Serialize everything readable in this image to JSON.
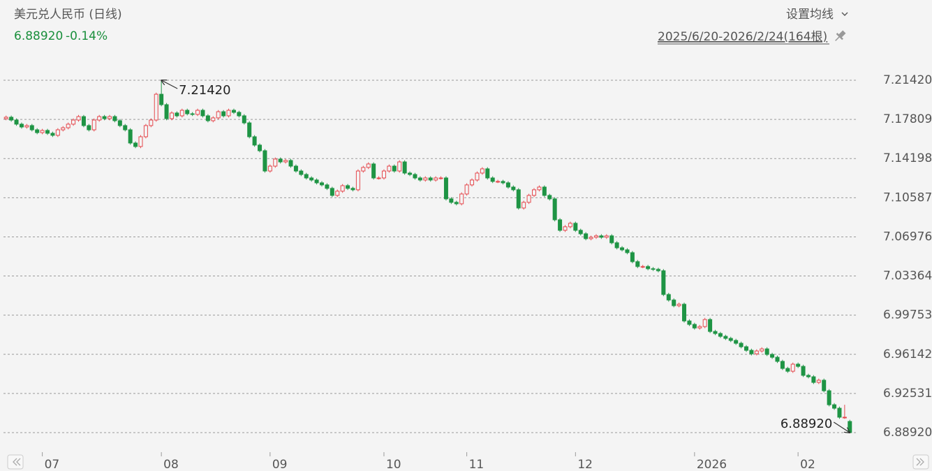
{
  "chart_data": {
    "type": "candlestick",
    "title": "美元兑人民币 (日线)",
    "last_price": {
      "value": 6.8892,
      "label": "6.88920"
    },
    "change": {
      "value": -0.14,
      "label": "-0.14%"
    },
    "ma_setting": "设置均线",
    "range": "2025/6/20-2026/2/24(164根)",
    "up_color": "#e5484d",
    "down_color": "#1e9444",
    "grid": true,
    "ylim": [
      6.8731,
      7.2303
    ],
    "yticks": [
      {
        "value": 7.2142,
        "label": "7.21420"
      },
      7.17809,
      7.14198,
      7.10587,
      7.06976,
      7.03364,
      6.99753,
      6.96142,
      6.92531,
      {
        "value": 6.8892,
        "label": "6.88920"
      }
    ],
    "annotations": [
      {
        "label": "7.21420",
        "value": 7.2142
      },
      {
        "label": "6.88920",
        "value": 6.8892
      }
    ],
    "categories": [
      null,
      null,
      null,
      null,
      null,
      null,
      null,
      "07",
      null,
      null,
      null,
      null,
      null,
      null,
      null,
      null,
      null,
      null,
      null,
      null,
      null,
      null,
      null,
      null,
      null,
      null,
      null,
      null,
      null,
      null,
      "08",
      null,
      null,
      null,
      null,
      null,
      null,
      null,
      null,
      null,
      null,
      null,
      null,
      null,
      null,
      null,
      null,
      null,
      null,
      null,
      null,
      "09",
      null,
      null,
      null,
      null,
      null,
      null,
      null,
      null,
      null,
      null,
      null,
      null,
      null,
      null,
      null,
      null,
      null,
      null,
      null,
      null,
      null,
      "10",
      null,
      null,
      null,
      null,
      null,
      null,
      null,
      null,
      null,
      null,
      null,
      null,
      null,
      null,
      null,
      "11",
      null,
      null,
      null,
      null,
      null,
      null,
      null,
      null,
      null,
      null,
      null,
      null,
      null,
      null,
      null,
      null,
      null,
      null,
      null,
      null,
      "12",
      null,
      null,
      null,
      null,
      null,
      null,
      null,
      null,
      null,
      null,
      null,
      null,
      null,
      null,
      null,
      null,
      null,
      null,
      null,
      null,
      null,
      null,
      "2026",
      null,
      null,
      null,
      null,
      null,
      null,
      null,
      null,
      null,
      null,
      null,
      null,
      null,
      null,
      null,
      null,
      null,
      null,
      null,
      "02",
      null,
      null,
      null,
      null,
      null,
      null,
      null,
      null,
      null,
      null
    ],
    "candles": [
      [
        7.1788,
        7.1816,
        7.1773,
        7.1801
      ],
      [
        7.1801,
        7.1816,
        7.176,
        7.1775
      ],
      [
        7.1775,
        7.179,
        7.1722,
        7.1737
      ],
      [
        7.1737,
        7.1752,
        7.1696,
        7.1711
      ],
      [
        7.1711,
        7.1739,
        7.1696,
        7.1724
      ],
      [
        7.1724,
        7.1739,
        7.167,
        7.1685
      ],
      [
        7.1685,
        7.17,
        7.1644,
        7.1659
      ],
      [
        7.1659,
        7.1694,
        7.1644,
        7.1679
      ],
      [
        7.1679,
        7.1694,
        7.1638,
        7.1653
      ],
      [
        7.1653,
        7.1668,
        7.1619,
        7.1634
      ],
      [
        7.1634,
        7.17,
        7.1619,
        7.1685
      ],
      [
        7.1685,
        7.1719,
        7.167,
        7.1704
      ],
      [
        7.1704,
        7.1752,
        7.1689,
        7.1737
      ],
      [
        7.1737,
        7.179,
        7.1722,
        7.1775
      ],
      [
        7.1775,
        7.1822,
        7.176,
        7.1807
      ],
      [
        7.1807,
        7.1822,
        7.1709,
        7.1724
      ],
      [
        7.1724,
        7.1739,
        7.167,
        7.1685
      ],
      [
        7.1685,
        7.179,
        7.167,
        7.1775
      ],
      [
        7.1775,
        7.1822,
        7.176,
        7.1807
      ],
      [
        7.1807,
        7.1822,
        7.1773,
        7.1788
      ],
      [
        7.1788,
        7.1822,
        7.1773,
        7.1807
      ],
      [
        7.1807,
        7.1822,
        7.1754,
        7.1769
      ],
      [
        7.1769,
        7.1784,
        7.1709,
        7.1724
      ],
      [
        7.1724,
        7.1739,
        7.167,
        7.1685
      ],
      [
        7.1685,
        7.17,
        7.1548,
        7.1563
      ],
      [
        7.1563,
        7.1578,
        7.1516,
        7.1531
      ],
      [
        7.1531,
        7.1636,
        7.1516,
        7.1621
      ],
      [
        7.1621,
        7.1739,
        7.1606,
        7.1724
      ],
      [
        7.1724,
        7.179,
        7.1709,
        7.1775
      ],
      [
        7.1775,
        7.2028,
        7.176,
        7.2013
      ],
      [
        7.2013,
        7.2142,
        7.1902,
        7.1917
      ],
      [
        7.1917,
        7.1932,
        7.1773,
        7.1788
      ],
      [
        7.1788,
        7.1855,
        7.1773,
        7.184
      ],
      [
        7.184,
        7.1855,
        7.1799,
        7.1814
      ],
      [
        7.1814,
        7.188,
        7.1799,
        7.1865
      ],
      [
        7.1865,
        7.188,
        7.1818,
        7.1833
      ],
      [
        7.1833,
        7.1848,
        7.1812,
        7.1827
      ],
      [
        7.1827,
        7.188,
        7.1812,
        7.1865
      ],
      [
        7.1865,
        7.188,
        7.1799,
        7.1814
      ],
      [
        7.1814,
        7.1829,
        7.1754,
        7.1769
      ],
      [
        7.1769,
        7.181,
        7.1754,
        7.1795
      ],
      [
        7.1795,
        7.1867,
        7.178,
        7.1852
      ],
      [
        7.1852,
        7.1867,
        7.1799,
        7.1814
      ],
      [
        7.1814,
        7.188,
        7.1799,
        7.1865
      ],
      [
        7.1865,
        7.188,
        7.1831,
        7.1846
      ],
      [
        7.1846,
        7.1861,
        7.1799,
        7.1814
      ],
      [
        7.1814,
        7.1829,
        7.1734,
        7.1749
      ],
      [
        7.1749,
        7.1764,
        7.1606,
        7.1621
      ],
      [
        7.1621,
        7.1636,
        7.1529,
        7.1544
      ],
      [
        7.1544,
        7.1559,
        7.1477,
        7.1492
      ],
      [
        7.1492,
        7.1507,
        7.129,
        7.1305
      ],
      [
        7.1305,
        7.1365,
        7.129,
        7.135
      ],
      [
        7.135,
        7.143,
        7.1335,
        7.1415
      ],
      [
        7.1415,
        7.143,
        7.1374,
        7.1389
      ],
      [
        7.1389,
        7.1417,
        7.1374,
        7.1402
      ],
      [
        7.1402,
        7.1417,
        7.1335,
        7.135
      ],
      [
        7.135,
        7.1365,
        7.129,
        7.1305
      ],
      [
        7.1305,
        7.132,
        7.1258,
        7.1273
      ],
      [
        7.1273,
        7.1288,
        7.1226,
        7.1241
      ],
      [
        7.1241,
        7.1256,
        7.1207,
        7.1222
      ],
      [
        7.1222,
        7.1237,
        7.1181,
        7.1196
      ],
      [
        7.1196,
        7.1211,
        7.1162,
        7.1177
      ],
      [
        7.1177,
        7.1192,
        7.113,
        7.1145
      ],
      [
        7.1145,
        7.116,
        7.1065,
        7.108
      ],
      [
        7.108,
        7.1134,
        7.1065,
        7.1119
      ],
      [
        7.1119,
        7.1185,
        7.1104,
        7.117
      ],
      [
        7.117,
        7.1185,
        7.113,
        7.1145
      ],
      [
        7.1145,
        7.116,
        7.1117,
        7.1132
      ],
      [
        7.1132,
        7.132,
        7.1117,
        7.1305
      ],
      [
        7.1305,
        7.1353,
        7.129,
        7.1338
      ],
      [
        7.1338,
        7.1385,
        7.1323,
        7.137
      ],
      [
        7.137,
        7.1385,
        7.1226,
        7.1241
      ],
      [
        7.1241,
        7.1256,
        7.1226,
        7.1241
      ],
      [
        7.1241,
        7.132,
        7.1226,
        7.1305
      ],
      [
        7.1305,
        7.1365,
        7.129,
        7.135
      ],
      [
        7.135,
        7.1365,
        7.129,
        7.1305
      ],
      [
        7.1305,
        7.1404,
        7.129,
        7.1389
      ],
      [
        7.1389,
        7.1404,
        7.1271,
        7.1286
      ],
      [
        7.1286,
        7.1301,
        7.1258,
        7.1273
      ],
      [
        7.1273,
        7.1288,
        7.1226,
        7.1241
      ],
      [
        7.1241,
        7.1256,
        7.1207,
        7.1222
      ],
      [
        7.1222,
        7.1256,
        7.1207,
        7.1241
      ],
      [
        7.1241,
        7.1256,
        7.1207,
        7.1222
      ],
      [
        7.1222,
        7.1256,
        7.1207,
        7.1241
      ],
      [
        7.1241,
        7.1256,
        7.1226,
        7.1241
      ],
      [
        7.1241,
        7.1256,
        7.1033,
        7.1048
      ],
      [
        7.1048,
        7.1063,
        7.1001,
        7.1016
      ],
      [
        7.1016,
        7.1031,
        7.0988,
        7.1003
      ],
      [
        7.1003,
        7.1108,
        7.0988,
        7.1093
      ],
      [
        7.1093,
        7.1192,
        7.1078,
        7.1177
      ],
      [
        7.1177,
        7.1237,
        7.1162,
        7.1222
      ],
      [
        7.1222,
        7.1301,
        7.1207,
        7.1286
      ],
      [
        7.1286,
        7.134,
        7.1271,
        7.1325
      ],
      [
        7.1325,
        7.134,
        7.1226,
        7.1241
      ],
      [
        7.1241,
        7.1256,
        7.1194,
        7.1209
      ],
      [
        7.1209,
        7.1224,
        7.1194,
        7.1209
      ],
      [
        7.1209,
        7.1224,
        7.1181,
        7.1196
      ],
      [
        7.1196,
        7.1211,
        7.1142,
        7.1157
      ],
      [
        7.1157,
        7.1172,
        7.1117,
        7.1132
      ],
      [
        7.1132,
        7.1147,
        7.0949,
        7.0964
      ],
      [
        7.0964,
        7.1031,
        7.0949,
        7.1016
      ],
      [
        7.1016,
        7.1095,
        7.1001,
        7.108
      ],
      [
        7.108,
        7.1147,
        7.1065,
        7.1132
      ],
      [
        7.1132,
        7.1172,
        7.1117,
        7.1157
      ],
      [
        7.1157,
        7.1172,
        7.1065,
        7.108
      ],
      [
        7.108,
        7.1095,
        7.1033,
        7.1048
      ],
      [
        7.1048,
        7.1063,
        7.084,
        7.0855
      ],
      [
        7.0855,
        7.087,
        7.0743,
        7.0758
      ],
      [
        7.0758,
        7.0806,
        7.0743,
        7.0791
      ],
      [
        7.0791,
        7.0838,
        7.0776,
        7.0823
      ],
      [
        7.0823,
        7.0838,
        7.0743,
        7.0758
      ],
      [
        7.0758,
        7.0773,
        7.0711,
        7.0726
      ],
      [
        7.0726,
        7.0741,
        7.0666,
        7.0681
      ],
      [
        7.0681,
        7.0709,
        7.0666,
        7.0694
      ],
      [
        7.0694,
        7.0722,
        7.0679,
        7.0707
      ],
      [
        7.0707,
        7.0722,
        7.0679,
        7.0694
      ],
      [
        7.0694,
        7.0722,
        7.0679,
        7.0707
      ],
      [
        7.0707,
        7.0722,
        7.0628,
        7.0643
      ],
      [
        7.0643,
        7.0658,
        7.0582,
        7.0597
      ],
      [
        7.0597,
        7.0612,
        7.0563,
        7.0578
      ],
      [
        7.0578,
        7.0593,
        7.0537,
        7.0552
      ],
      [
        7.0552,
        7.0567,
        7.0454,
        7.0469
      ],
      [
        7.0469,
        7.0484,
        7.0409,
        7.0424
      ],
      [
        7.0424,
        7.0439,
        7.0409,
        7.0424
      ],
      [
        7.0424,
        7.0439,
        7.0389,
        7.0404
      ],
      [
        7.0404,
        7.0419,
        7.0383,
        7.0398
      ],
      [
        7.0398,
        7.0413,
        7.037,
        7.0385
      ],
      [
        7.0385,
        7.04,
        7.0151,
        7.0166
      ],
      [
        7.0166,
        7.0181,
        7.01,
        7.0115
      ],
      [
        7.0115,
        7.013,
        7.0048,
        7.0063
      ],
      [
        7.0063,
        7.0091,
        7.0048,
        7.0076
      ],
      [
        7.0076,
        7.0091,
        6.9907,
        6.9922
      ],
      [
        6.9922,
        6.9937,
        6.9875,
        6.989
      ],
      [
        6.989,
        6.9905,
        6.9842,
        6.9857
      ],
      [
        6.9857,
        6.9885,
        6.9842,
        6.987
      ],
      [
        6.987,
        6.995,
        6.9855,
        6.9935
      ],
      [
        6.9935,
        6.995,
        6.981,
        6.9825
      ],
      [
        6.9825,
        6.984,
        6.9791,
        6.9806
      ],
      [
        6.9806,
        6.9821,
        6.9765,
        6.978
      ],
      [
        6.978,
        6.9795,
        6.9746,
        6.9761
      ],
      [
        6.9761,
        6.9776,
        6.9727,
        6.9742
      ],
      [
        6.9742,
        6.9757,
        6.9701,
        6.9716
      ],
      [
        6.9716,
        6.9731,
        6.9669,
        6.9684
      ],
      [
        6.9684,
        6.9699,
        6.9636,
        6.9651
      ],
      [
        6.9651,
        6.9666,
        6.9604,
        6.9619
      ],
      [
        6.9619,
        6.966,
        6.9604,
        6.9645
      ],
      [
        6.9645,
        6.9679,
        6.963,
        6.9664
      ],
      [
        6.9664,
        6.9679,
        6.9598,
        6.9613
      ],
      [
        6.9613,
        6.9628,
        6.9572,
        6.9587
      ],
      [
        6.9587,
        6.9602,
        6.9534,
        6.9549
      ],
      [
        6.9549,
        6.9564,
        6.9469,
        6.9484
      ],
      [
        6.9484,
        6.9499,
        6.9443,
        6.9458
      ],
      [
        6.9458,
        6.9538,
        6.9443,
        6.9523
      ],
      [
        6.9523,
        6.9538,
        6.9488,
        6.9503
      ],
      [
        6.9503,
        6.9518,
        6.9405,
        6.942
      ],
      [
        6.942,
        6.9435,
        6.9392,
        6.9407
      ],
      [
        6.9407,
        6.9422,
        6.934,
        6.9355
      ],
      [
        6.9355,
        6.939,
        6.934,
        6.9375
      ],
      [
        6.9375,
        6.939,
        6.9263,
        6.9278
      ],
      [
        6.9278,
        6.9293,
        6.9134,
        6.9149
      ],
      [
        6.9149,
        6.9164,
        6.9102,
        6.9117
      ],
      [
        6.9117,
        6.9132,
        6.9019,
        6.9034
      ],
      [
        6.9034,
        6.9149,
        6.9019,
        6.9034
      ],
      [
        6.8995,
        6.901,
        6.8892,
        6.8892
      ]
    ]
  }
}
